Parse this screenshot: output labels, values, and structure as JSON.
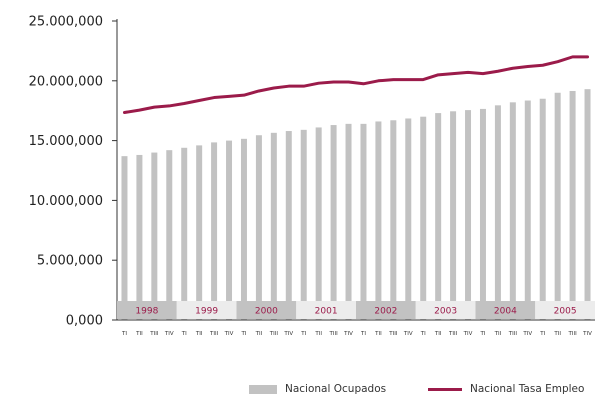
{
  "chart_data": {
    "type": "bar+line",
    "title": "",
    "xlabel": "",
    "ylabel": "",
    "ylim": [
      0,
      25000000
    ],
    "yticks": [
      "0,000",
      "5.000,000",
      "10.000,000",
      "15.000,000",
      "20.000,000",
      "25.000,000"
    ],
    "years": [
      "1998",
      "1999",
      "2000",
      "2001",
      "2002",
      "2003",
      "2004",
      "2005"
    ],
    "quarter_labels": [
      "TI",
      "TII",
      "TIII",
      "TIV"
    ],
    "categories": [
      "1998 TI",
      "1998 TII",
      "1998 TIII",
      "1998 TIV",
      "1999 TI",
      "1999 TII",
      "1999 TIII",
      "1999 TIV",
      "2000 TI",
      "2000 TII",
      "2000 TIII",
      "2000 TIV",
      "2001 TI",
      "2001 TII",
      "2001 TIII",
      "2001 TIV",
      "2002 TI",
      "2002 TII",
      "2002 TIII",
      "2002 TIV",
      "2003 TI",
      "2003 TII",
      "2003 TIII",
      "2003 TIV",
      "2004 TI",
      "2004 TII",
      "2004 TIII",
      "2004 TIV",
      "2005 TI",
      "2005 TII",
      "2005 TIII",
      "2005 TIV"
    ],
    "series": [
      {
        "name": "Nacional Ocupados",
        "type": "bar",
        "color": "#c2c2c2",
        "values": [
          13700000,
          13800000,
          14000000,
          14200000,
          14400000,
          14600000,
          14850000,
          15000000,
          15150000,
          15450000,
          15650000,
          15800000,
          15900000,
          16100000,
          16300000,
          16400000,
          16400000,
          16600000,
          16700000,
          16850000,
          17000000,
          17300000,
          17450000,
          17550000,
          17650000,
          17950000,
          18200000,
          18350000,
          18500000,
          19000000,
          19150000,
          19300000
        ]
      },
      {
        "name": "Nacional Tasa Empleo",
        "type": "line",
        "color": "#9b1b4a",
        "values": [
          17350000,
          17550000,
          17800000,
          17900000,
          18100000,
          18350000,
          18600000,
          18700000,
          18800000,
          19150000,
          19400000,
          19550000,
          19550000,
          19800000,
          19900000,
          19900000,
          19750000,
          20000000,
          20100000,
          20100000,
          20100000,
          20500000,
          20600000,
          20700000,
          20600000,
          20800000,
          21050000,
          21200000,
          21300000,
          21600000,
          22000000,
          22000000
        ]
      }
    ],
    "legend_placement": "bottom-right",
    "grid": false
  }
}
